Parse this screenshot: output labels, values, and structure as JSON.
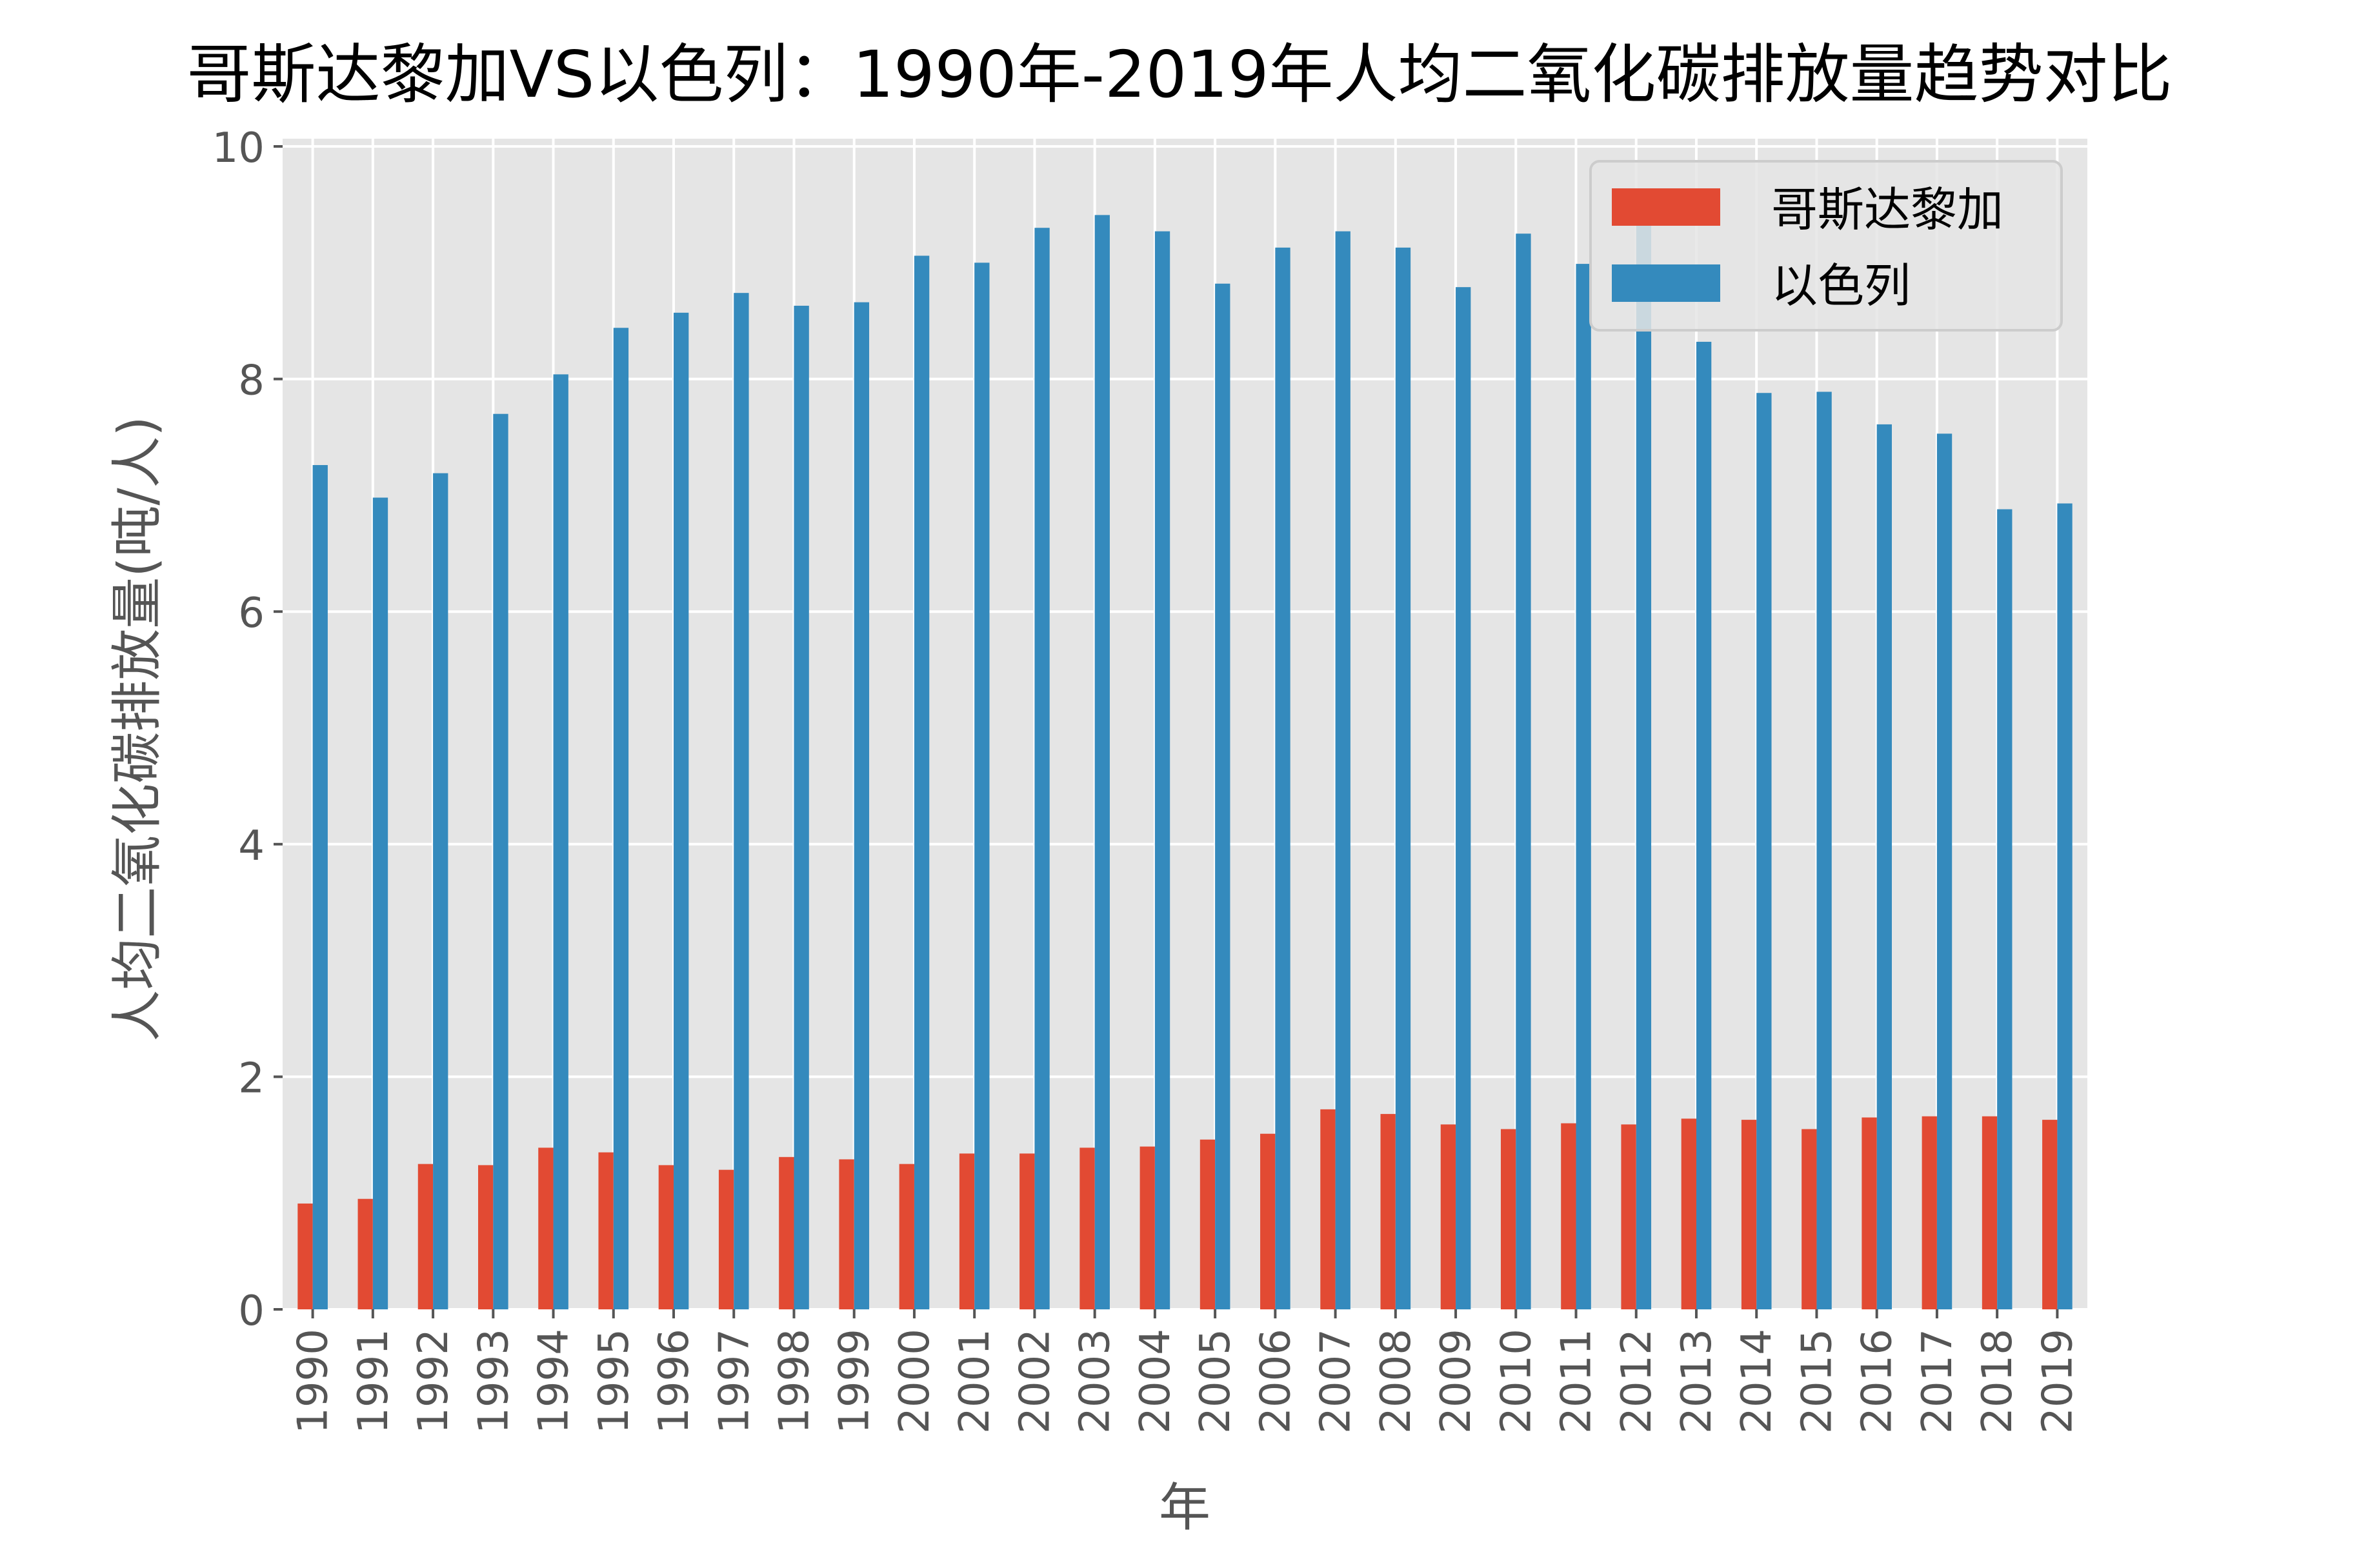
{
  "chart_data": {
    "type": "bar",
    "title": "哥斯达黎加VS以色列：1990年-2019年人均二氧化碳排放量趋势对比",
    "xlabel": "年",
    "ylabel": "人均二氧化碳排放量(吨/人)",
    "ylim": [
      0,
      10
    ],
    "yticks": [
      "0",
      "2",
      "4",
      "6",
      "8",
      "10"
    ],
    "grid": true,
    "legend_position": "top-right",
    "categories": [
      "1990",
      "1991",
      "1992",
      "1993",
      "1994",
      "1995",
      "1996",
      "1997",
      "1998",
      "1999",
      "2000",
      "2001",
      "2002",
      "2003",
      "2004",
      "2005",
      "2006",
      "2007",
      "2008",
      "2009",
      "2010",
      "2011",
      "2012",
      "2013",
      "2014",
      "2015",
      "2016",
      "2017",
      "2018",
      "2019"
    ],
    "series": [
      {
        "name": "哥斯达黎加",
        "color": "#E24A33",
        "values": [
          0.91,
          0.95,
          1.25,
          1.24,
          1.39,
          1.35,
          1.24,
          1.2,
          1.31,
          1.29,
          1.25,
          1.34,
          1.34,
          1.39,
          1.4,
          1.46,
          1.51,
          1.72,
          1.68,
          1.59,
          1.55,
          1.6,
          1.59,
          1.64,
          1.63,
          1.55,
          1.65,
          1.66,
          1.66,
          1.63
        ]
      },
      {
        "name": "以色列",
        "color": "#348ABD",
        "values": [
          7.26,
          6.98,
          7.19,
          7.7,
          8.04,
          8.44,
          8.57,
          8.74,
          8.63,
          8.66,
          9.06,
          9.0,
          9.3,
          9.41,
          9.27,
          8.82,
          9.13,
          9.27,
          9.13,
          8.79,
          9.25,
          8.99,
          9.32,
          8.32,
          7.88,
          7.89,
          7.61,
          7.53,
          6.88,
          6.93
        ]
      }
    ]
  }
}
